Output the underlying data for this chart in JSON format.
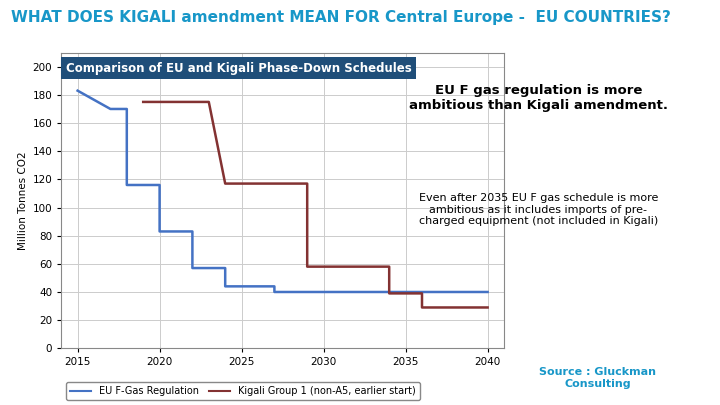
{
  "title": "WHAT DOES KIGALI amendment MEAN FOR Central Europe -  EU COUNTRIES?",
  "title_color": "#1897C8",
  "title_fontsize": 11,
  "chart_title": "Comparison of EU and Kigali Phase-Down Schedules",
  "chart_title_bg": "#1F4E79",
  "chart_title_color": "white",
  "bg_color": "#FFFFFF",
  "plot_bg_color": "#FFFFFF",
  "ylabel": "Million Tonnes CO2",
  "ylim": [
    0,
    210
  ],
  "yticks": [
    0,
    20,
    40,
    60,
    80,
    100,
    120,
    140,
    160,
    180,
    200
  ],
  "xlim": [
    2014.0,
    2041.0
  ],
  "xticks": [
    2015,
    2020,
    2025,
    2030,
    2035,
    2040
  ],
  "eu_line_color": "#4472C4",
  "kigali_line_color": "#833232",
  "eu_x": [
    2015,
    2017,
    2018,
    2018,
    2020,
    2020,
    2022,
    2022,
    2024,
    2024,
    2027,
    2027,
    2030,
    2030,
    2035,
    2035,
    2040
  ],
  "eu_y": [
    183,
    170,
    170,
    116,
    116,
    83,
    83,
    57,
    57,
    44,
    44,
    40,
    40,
    40,
    40,
    40,
    40
  ],
  "kigali_x": [
    2019,
    2023,
    2023,
    2024,
    2024,
    2029,
    2029,
    2034,
    2034,
    2036,
    2036,
    2040
  ],
  "kigali_y": [
    175,
    175,
    175,
    117,
    117,
    117,
    58,
    58,
    39,
    39,
    29,
    29
  ],
  "eu_label": "EU F-Gas Regulation",
  "kigali_label": "Kigali Group 1 (non-A5, earlier start)",
  "annotation_bold": "EU F gas regulation is more\nambitious than Kigali amendment.",
  "annotation_small": "Even after 2035 EU F gas schedule is more\nambitious as it includes imports of pre-\ncharged equipment (not included in Kigali)",
  "annotation_bg": "#FFFF00",
  "source_text": "Source : Gluckman\nConsulting",
  "source_color": "#1897C8",
  "grid_color": "#CCCCCC",
  "outer_box_color": "#AAAAAA"
}
